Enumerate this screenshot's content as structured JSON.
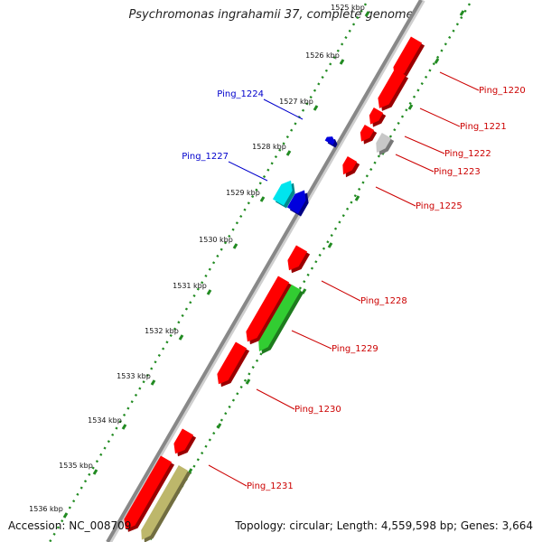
{
  "title": "Psychromonas ingrahamii 37, complete genome",
  "footer": {
    "accession": "Accession: NC_008709",
    "summary": "Topology: circular; Length: 4,559,598 bp; Genes: 3,664"
  },
  "ticks": [
    {
      "label": "1525 kbp",
      "faded": true
    },
    {
      "label": "1526 kbp"
    },
    {
      "label": "1527 kbp"
    },
    {
      "label": "1528 kbp"
    },
    {
      "label": "1529 kbp"
    },
    {
      "label": "1530 kbp"
    },
    {
      "label": "1531 kbp"
    },
    {
      "label": "1532 kbp"
    },
    {
      "label": "1533 kbp"
    },
    {
      "label": "1534 kbp"
    },
    {
      "label": "1535 kbp"
    },
    {
      "label": "1536 kbp"
    }
  ],
  "gene_labels": [
    {
      "text": "Ping_1220",
      "color": "#cc0000"
    },
    {
      "text": "Ping_1221",
      "color": "#cc0000"
    },
    {
      "text": "Ping_1222",
      "color": "#cc0000"
    },
    {
      "text": "Ping_1223",
      "color": "#cc0000"
    },
    {
      "text": "Ping_1225",
      "color": "#cc0000"
    },
    {
      "text": "Ping_1228",
      "color": "#cc0000"
    },
    {
      "text": "Ping_1229",
      "color": "#cc0000"
    },
    {
      "text": "Ping_1230",
      "color": "#cc0000"
    },
    {
      "text": "Ping_1231",
      "color": "#cc0000"
    },
    {
      "text": "Ping_1224",
      "color": "#0000cc"
    },
    {
      "text": "Ping_1227",
      "color": "#0000cc"
    }
  ],
  "colors": {
    "backbone": "#888888",
    "tick_dots": "#228B22",
    "cds_forward": "#ff0000",
    "cds_reverse": "#0000dd",
    "cds_cyan": "#00e5ee",
    "cds_grey": "#c8c8c8",
    "cds_green": "#32cd32",
    "cds_khaki": "#bdb76b"
  }
}
